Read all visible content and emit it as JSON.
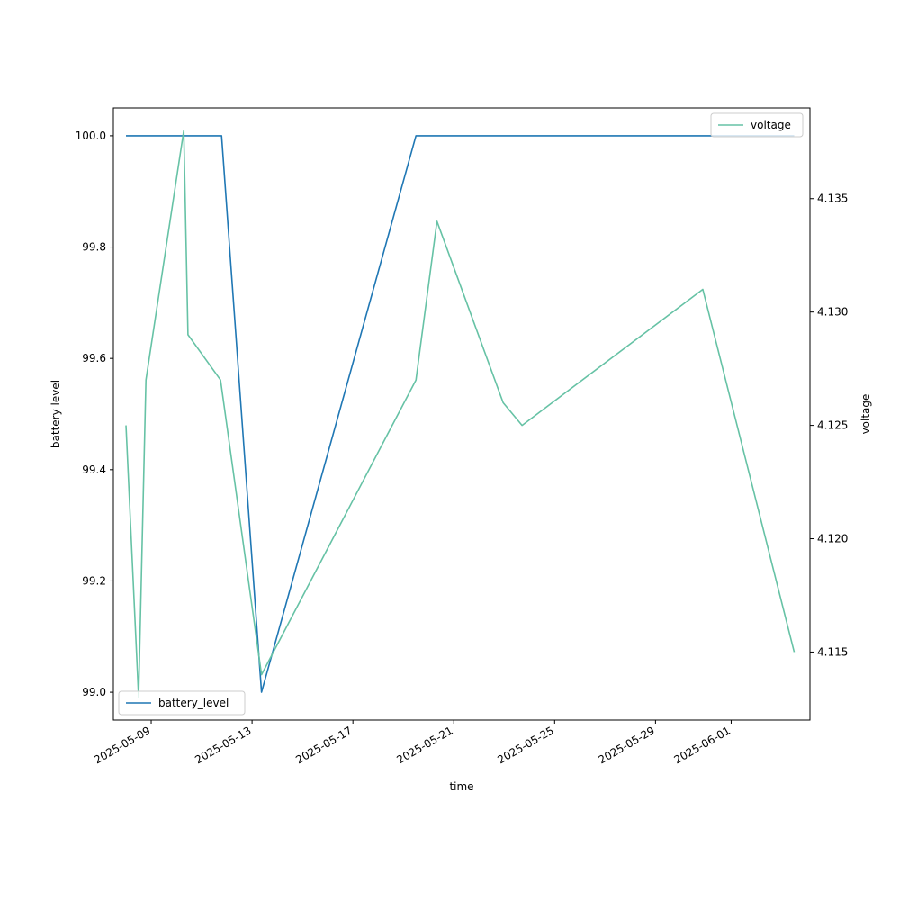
{
  "chart_data": {
    "type": "line",
    "xlabel": "time",
    "ylabel_left": "battery level",
    "ylabel_right": "voltage",
    "x_range": [
      "2025-05-07T12:00",
      "2025-06-04T03:00"
    ],
    "y_left_range": [
      98.95,
      100.05
    ],
    "y_right_range": [
      4.112,
      4.139
    ],
    "x_tick_labels": [
      "2025-05-09",
      "2025-05-13",
      "2025-05-17",
      "2025-05-21",
      "2025-05-25",
      "2025-05-29",
      "2025-06-01"
    ],
    "y_left_ticks": [
      "99.0",
      "99.2",
      "99.4",
      "99.6",
      "99.8",
      "100.0"
    ],
    "y_right_ticks": [
      "4.115",
      "4.120",
      "4.125",
      "4.130",
      "4.135"
    ],
    "series": [
      {
        "name": "battery_level",
        "axis": "left",
        "color": "#1f77b4",
        "legend_position": "lower left",
        "points": [
          {
            "x": "2025-05-08T00:00",
            "y": 100.0
          },
          {
            "x": "2025-05-11T19:00",
            "y": 100.0
          },
          {
            "x": "2025-05-13T09:00",
            "y": 99.0
          },
          {
            "x": "2025-05-19T12:00",
            "y": 100.0
          },
          {
            "x": "2025-06-03T12:00",
            "y": 100.0
          }
        ]
      },
      {
        "name": "voltage",
        "axis": "right",
        "color": "#66c2a5",
        "legend_position": "upper right",
        "points": [
          {
            "x": "2025-05-08T00:00",
            "y": 4.125
          },
          {
            "x": "2025-05-08T12:00",
            "y": 4.113
          },
          {
            "x": "2025-05-08T19:00",
            "y": 4.127
          },
          {
            "x": "2025-05-10T07:00",
            "y": 4.138
          },
          {
            "x": "2025-05-10T11:00",
            "y": 4.129
          },
          {
            "x": "2025-05-11T18:00",
            "y": 4.127
          },
          {
            "x": "2025-05-13T09:00",
            "y": 4.114
          },
          {
            "x": "2025-05-19T12:00",
            "y": 4.127
          },
          {
            "x": "2025-05-20T08:00",
            "y": 4.134
          },
          {
            "x": "2025-05-22T23:00",
            "y": 4.126
          },
          {
            "x": "2025-05-23T17:00",
            "y": 4.125
          },
          {
            "x": "2025-05-30T21:00",
            "y": 4.131
          },
          {
            "x": "2025-06-03T12:00",
            "y": 4.115
          }
        ]
      }
    ]
  }
}
